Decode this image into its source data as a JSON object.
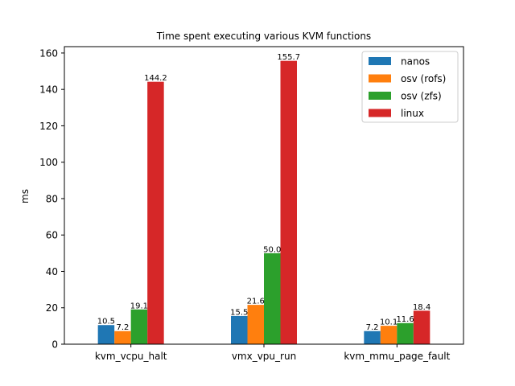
{
  "chart_data": {
    "type": "bar",
    "title": "Time spent executing various KVM functions",
    "xlabel": "",
    "ylabel": "ms",
    "ylim": [
      0,
      163.5
    ],
    "yticks": [
      0,
      20,
      40,
      60,
      80,
      100,
      120,
      140,
      160
    ],
    "grid": false,
    "legend_position": "top-right",
    "categories": [
      "kvm_vcpu_halt",
      "vmx_vpu_run",
      "kvm_mmu_page_fault"
    ],
    "series": [
      {
        "name": "nanos",
        "color": "#1f77b4",
        "values": [
          10.5,
          15.5,
          7.2
        ],
        "labels": [
          "10.5",
          "15.5",
          "7.2"
        ]
      },
      {
        "name": "osv (rofs)",
        "color": "#ff7f0e",
        "values": [
          7.2,
          21.6,
          10.1
        ],
        "labels": [
          "7.2",
          "21.6",
          "10.1"
        ]
      },
      {
        "name": "osv (zfs)",
        "color": "#2ca02c",
        "values": [
          19.1,
          50.0,
          11.6
        ],
        "labels": [
          "19.1",
          "50.0",
          "11.6"
        ]
      },
      {
        "name": "linux",
        "color": "#d62728",
        "values": [
          144.2,
          155.7,
          18.4
        ],
        "labels": [
          "144.2",
          "155.7",
          "18.4"
        ]
      }
    ]
  }
}
